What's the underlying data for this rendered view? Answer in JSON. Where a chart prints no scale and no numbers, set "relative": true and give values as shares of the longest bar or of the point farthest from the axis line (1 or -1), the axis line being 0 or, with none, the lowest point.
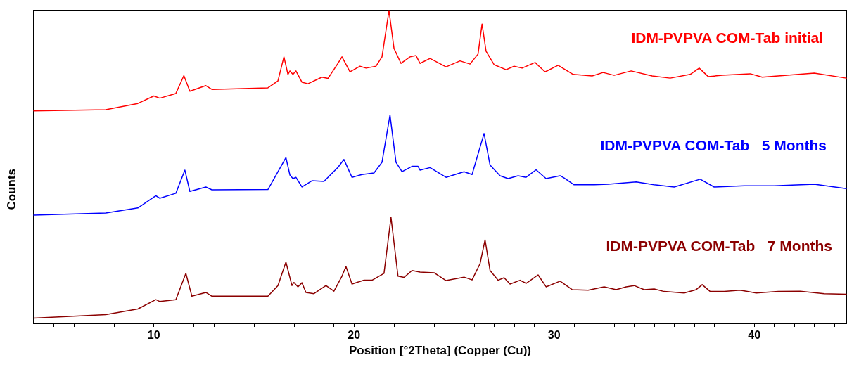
{
  "chart_data": {
    "type": "line",
    "xlabel": "Position [°2Theta] (Copper (Cu))",
    "ylabel": "Counts",
    "relative": true,
    "grid": false,
    "legend": false,
    "marker": "none",
    "line_style": "solid",
    "xlim": [
      4,
      44.6
    ],
    "xticks": [
      {
        "value": 5,
        "label": null
      },
      {
        "value": 6,
        "label": null
      },
      {
        "value": 7,
        "label": null
      },
      {
        "value": 8,
        "label": null
      },
      {
        "value": 9,
        "label": null
      },
      10,
      {
        "value": 11,
        "label": null
      },
      {
        "value": 12,
        "label": null
      },
      {
        "value": 13,
        "label": null
      },
      {
        "value": 14,
        "label": null
      },
      {
        "value": 15,
        "label": null
      },
      {
        "value": 16,
        "label": null
      },
      {
        "value": 17,
        "label": null
      },
      {
        "value": 18,
        "label": null
      },
      {
        "value": 19,
        "label": null
      },
      20,
      {
        "value": 21,
        "label": null
      },
      {
        "value": 22,
        "label": null
      },
      {
        "value": 23,
        "label": null
      },
      {
        "value": 24,
        "label": null
      },
      {
        "value": 25,
        "label": null
      },
      {
        "value": 26,
        "label": null
      },
      {
        "value": 27,
        "label": null
      },
      {
        "value": 28,
        "label": null
      },
      {
        "value": 29,
        "label": null
      },
      30,
      {
        "value": 31,
        "label": null
      },
      {
        "value": 32,
        "label": null
      },
      {
        "value": 33,
        "label": null
      },
      {
        "value": 34,
        "label": null
      },
      {
        "value": 35,
        "label": null
      },
      {
        "value": 36,
        "label": null
      },
      {
        "value": 37,
        "label": null
      },
      {
        "value": 38,
        "label": null
      },
      {
        "value": 39,
        "label": null
      },
      40,
      {
        "value": 41,
        "label": null
      },
      {
        "value": 42,
        "label": null
      },
      {
        "value": 43,
        "label": null
      },
      {
        "value": 44,
        "label": null
      }
    ],
    "series": [
      {
        "name": "IDM-PVPVA COM-Tab initial",
        "color": "#ff0000",
        "x": [
          4,
          7.6,
          9.2,
          10.0,
          10.3,
          11.1,
          11.5,
          11.8,
          12.6,
          12.9,
          15.7,
          16.2,
          16.5,
          16.7,
          16.8,
          16.95,
          17.1,
          17.4,
          17.7,
          18.4,
          18.7,
          19.2,
          19.4,
          19.8,
          20.3,
          20.6,
          21.1,
          21.4,
          21.75,
          22.0,
          22.35,
          22.8,
          23.1,
          23.3,
          23.8,
          24.6,
          25.3,
          25.8,
          26.2,
          26.4,
          26.6,
          27.0,
          27.6,
          28.0,
          28.4,
          29.05,
          29.55,
          30.2,
          30.95,
          31.9,
          32.45,
          33.0,
          33.85,
          34.9,
          35.8,
          36.8,
          37.25,
          37.7,
          38.4,
          39.8,
          40.4,
          43.0,
          44.6
        ],
        "values": [
          0.679,
          0.683,
          0.703,
          0.727,
          0.72,
          0.735,
          0.792,
          0.742,
          0.76,
          0.748,
          0.753,
          0.775,
          0.852,
          0.796,
          0.807,
          0.796,
          0.807,
          0.771,
          0.766,
          0.787,
          0.783,
          0.831,
          0.852,
          0.804,
          0.822,
          0.816,
          0.822,
          0.852,
          1.0,
          0.879,
          0.831,
          0.852,
          0.856,
          0.831,
          0.847,
          0.82,
          0.839,
          0.829,
          0.861,
          0.957,
          0.87,
          0.827,
          0.811,
          0.822,
          0.816,
          0.834,
          0.804,
          0.825,
          0.796,
          0.791,
          0.802,
          0.793,
          0.807,
          0.791,
          0.784,
          0.796,
          0.816,
          0.789,
          0.793,
          0.798,
          0.787,
          0.8,
          0.784
        ]
      },
      {
        "name": "IDM-PVPVA COM-Tab   5 Months",
        "color": "#0000ff",
        "x": [
          4,
          7.6,
          9.2,
          10.1,
          10.3,
          11.1,
          11.55,
          11.8,
          12.6,
          12.9,
          15.7,
          16.6,
          16.8,
          16.95,
          17.1,
          17.4,
          17.9,
          18.5,
          19.2,
          19.5,
          19.9,
          20.4,
          21.0,
          21.4,
          21.8,
          22.1,
          22.4,
          22.9,
          23.2,
          23.3,
          23.8,
          24.6,
          25.5,
          25.9,
          26.5,
          26.8,
          27.3,
          27.7,
          28.2,
          28.6,
          29.1,
          29.6,
          30.3,
          30.5,
          31.0,
          32.0,
          32.7,
          34.1,
          35.0,
          36.0,
          37.3,
          38.0,
          39.5,
          41.0,
          43.0,
          44.6
        ],
        "values": [
          0.346,
          0.353,
          0.369,
          0.408,
          0.4,
          0.416,
          0.49,
          0.422,
          0.436,
          0.427,
          0.428,
          0.53,
          0.474,
          0.463,
          0.467,
          0.436,
          0.456,
          0.454,
          0.499,
          0.524,
          0.467,
          0.476,
          0.481,
          0.515,
          0.666,
          0.515,
          0.485,
          0.502,
          0.502,
          0.49,
          0.498,
          0.467,
          0.485,
          0.476,
          0.607,
          0.506,
          0.472,
          0.463,
          0.472,
          0.467,
          0.491,
          0.463,
          0.472,
          0.465,
          0.443,
          0.443,
          0.445,
          0.452,
          0.443,
          0.436,
          0.461,
          0.436,
          0.44,
          0.44,
          0.445,
          0.431
        ]
      },
      {
        "name": "IDM-PVPVA COM-Tab   7 Months",
        "color": "#8b0000",
        "x": [
          4,
          7.6,
          9.2,
          10.1,
          10.3,
          11.1,
          11.6,
          11.9,
          12.6,
          12.9,
          15.7,
          16.2,
          16.6,
          16.9,
          17.0,
          17.2,
          17.4,
          17.6,
          18.0,
          18.6,
          19.0,
          19.4,
          19.6,
          19.9,
          20.5,
          20.9,
          21.5,
          21.85,
          22.2,
          22.5,
          22.9,
          23.3,
          24.0,
          24.6,
          25.5,
          25.9,
          26.3,
          26.55,
          26.8,
          27.2,
          27.5,
          27.8,
          28.3,
          28.6,
          29.2,
          29.6,
          30.3,
          30.9,
          31.7,
          32.5,
          33.1,
          33.6,
          34.0,
          34.5,
          35.0,
          35.5,
          36.5,
          37.1,
          37.4,
          37.8,
          38.5,
          39.3,
          40.1,
          41.2,
          42.3,
          43.5,
          44.6
        ],
        "values": [
          0.017,
          0.028,
          0.046,
          0.076,
          0.07,
          0.076,
          0.16,
          0.087,
          0.099,
          0.087,
          0.087,
          0.121,
          0.196,
          0.121,
          0.131,
          0.117,
          0.13,
          0.099,
          0.095,
          0.121,
          0.103,
          0.151,
          0.182,
          0.126,
          0.138,
          0.138,
          0.16,
          0.339,
          0.151,
          0.147,
          0.169,
          0.164,
          0.162,
          0.137,
          0.148,
          0.139,
          0.191,
          0.267,
          0.169,
          0.138,
          0.146,
          0.126,
          0.138,
          0.128,
          0.155,
          0.117,
          0.135,
          0.108,
          0.106,
          0.117,
          0.108,
          0.117,
          0.121,
          0.108,
          0.11,
          0.102,
          0.097,
          0.108,
          0.124,
          0.102,
          0.102,
          0.106,
          0.097,
          0.102,
          0.103,
          0.095,
          0.093
        ]
      }
    ]
  }
}
